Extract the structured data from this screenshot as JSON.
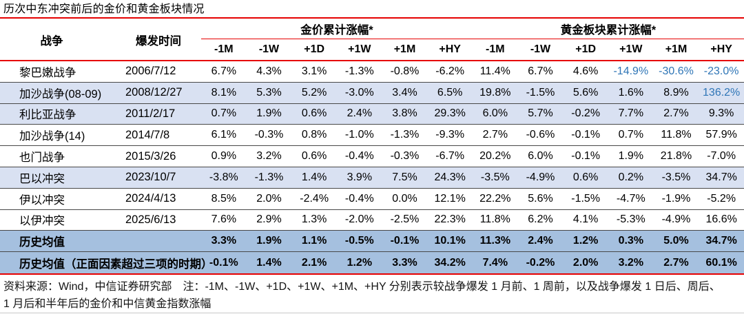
{
  "title": "历次中东冲突前后的金价和黄金板块情况",
  "table": {
    "war_header": "战争",
    "date_header": "爆发时间",
    "gold_group_header": "金价累计涨幅*",
    "sector_group_header": "黄金板块累计涨幅*",
    "period_headers": [
      "-1M",
      "-1W",
      "+1D",
      "+1W",
      "+1M",
      "+HY"
    ],
    "rows": [
      {
        "war": "黎巴嫩战争",
        "date": "2006/7/12",
        "variant": "plain",
        "gold": [
          "6.7%",
          "4.3%",
          "3.1%",
          "-1.3%",
          "-0.8%",
          "-6.2%"
        ],
        "sector": [
          "11.4%",
          "6.7%",
          "4.6%",
          "-14.9%",
          "-30.6%",
          "-23.0%"
        ],
        "blue_gold": [],
        "blue_sector": [
          3,
          4,
          5
        ]
      },
      {
        "war": "加沙战争(08-09)",
        "date": "2008/12/27",
        "variant": "stripe",
        "gold": [
          "8.1%",
          "5.3%",
          "5.2%",
          "-3.0%",
          "3.4%",
          "6.5%"
        ],
        "sector": [
          "19.8%",
          "-1.5%",
          "5.6%",
          "1.6%",
          "8.9%",
          "136.2%"
        ],
        "blue_gold": [],
        "blue_sector": [
          5
        ]
      },
      {
        "war": "利比亚战争",
        "date": "2011/2/17",
        "variant": "stripe",
        "gold": [
          "0.7%",
          "1.9%",
          "0.6%",
          "2.4%",
          "3.8%",
          "29.3%"
        ],
        "sector": [
          "6.0%",
          "5.7%",
          "-0.2%",
          "7.7%",
          "2.7%",
          "9.3%"
        ],
        "blue_gold": [],
        "blue_sector": []
      },
      {
        "war": "加沙战争(14)",
        "date": "2014/7/8",
        "variant": "plain",
        "gold": [
          "6.1%",
          "-0.3%",
          "0.8%",
          "-1.0%",
          "-1.3%",
          "-9.3%"
        ],
        "sector": [
          "2.7%",
          "-0.6%",
          "-0.1%",
          "0.7%",
          "11.8%",
          "57.9%"
        ],
        "blue_gold": [],
        "blue_sector": []
      },
      {
        "war": "也门战争",
        "date": "2015/3/26",
        "variant": "plain",
        "gold": [
          "0.9%",
          "3.2%",
          "0.6%",
          "-0.4%",
          "-0.3%",
          "-6.7%"
        ],
        "sector": [
          "20.2%",
          "6.0%",
          "-0.1%",
          "1.9%",
          "21.8%",
          "-7.0%"
        ],
        "blue_gold": [],
        "blue_sector": []
      },
      {
        "war": "巴以冲突",
        "date": "2023/10/7",
        "variant": "stripe",
        "gold": [
          "-3.8%",
          "-1.3%",
          "1.4%",
          "3.9%",
          "7.5%",
          "24.3%"
        ],
        "sector": [
          "-3.5%",
          "-4.9%",
          "0.6%",
          "0.2%",
          "-3.5%",
          "34.7%"
        ],
        "blue_gold": [],
        "blue_sector": []
      },
      {
        "war": "伊以冲突",
        "date": "2024/4/13",
        "variant": "plain",
        "gold": [
          "8.5%",
          "2.0%",
          "-2.4%",
          "-0.4%",
          "0.0%",
          "12.1%"
        ],
        "sector": [
          "22.2%",
          "5.6%",
          "-1.5%",
          "-4.7%",
          "-1.9%",
          "-5.2%"
        ],
        "blue_gold": [],
        "blue_sector": []
      },
      {
        "war": "以伊冲突",
        "date": "2025/6/13",
        "variant": "plain",
        "gold": [
          "7.6%",
          "2.9%",
          "1.3%",
          "-2.0%",
          "-2.5%",
          "22.3%"
        ],
        "sector": [
          "11.8%",
          "6.2%",
          "4.1%",
          "-5.3%",
          "-4.9%",
          "16.6%"
        ],
        "blue_gold": [],
        "blue_sector": []
      },
      {
        "war": "历史均值",
        "date": "",
        "variant": "average",
        "gold": [
          "3.3%",
          "1.9%",
          "1.1%",
          "-0.5%",
          "-0.1%",
          "10.1%"
        ],
        "sector": [
          "11.3%",
          "2.4%",
          "1.2%",
          "0.3%",
          "5.0%",
          "34.7%"
        ],
        "blue_gold": [],
        "blue_sector": []
      },
      {
        "war": "历史均值（正面因素超过三项的时期）",
        "date": "",
        "variant": "average",
        "gold": [
          "-0.1%",
          "1.4%",
          "2.1%",
          "1.2%",
          "3.3%",
          "34.2%"
        ],
        "sector": [
          "7.4%",
          "-0.2%",
          "2.0%",
          "3.2%",
          "2.7%",
          "60.1%"
        ],
        "blue_gold": [],
        "blue_sector": []
      }
    ]
  },
  "source_note": {
    "line1": "资料来源：Wind，中信证券研究部　注：-1M、-1W、+1D、+1W、+1M、+HY 分别表示较战争爆发 1 月前、1 周前，以及战争爆发 1 日后、周后、",
    "line2": "1 月后和半年后的金价和中信黄金指数涨幅"
  },
  "colors": {
    "accent_red": "#e60000",
    "stripe_row_bg": "#D9E1F2",
    "average_row_bg": "#A5C0DF",
    "highlight_value_blue": "#2E75B6",
    "row_separator": "#474747"
  }
}
